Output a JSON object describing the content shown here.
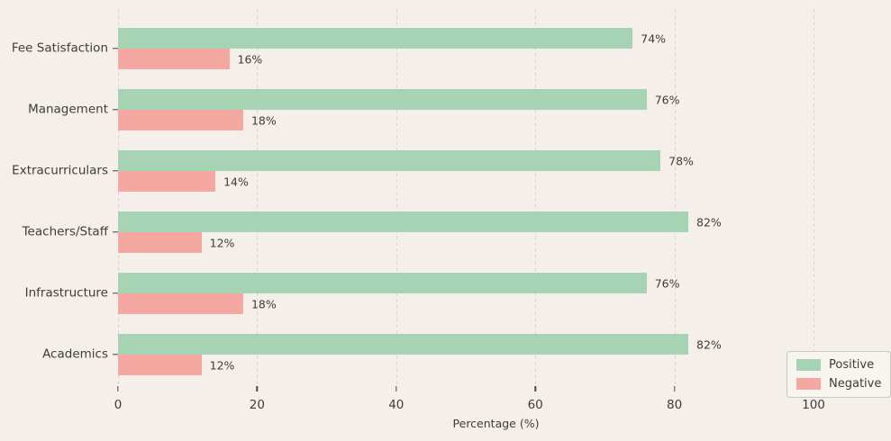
{
  "chart_data": {
    "type": "bar",
    "orientation": "horizontal",
    "categories": [
      "Fee Satisfaction",
      "Management",
      "Extracurriculars",
      "Teachers/Staff",
      "Infrastructure",
      "Academics"
    ],
    "series": [
      {
        "name": "Positive",
        "color": "#a6d3b4",
        "values": [
          74,
          76,
          78,
          82,
          76,
          82
        ]
      },
      {
        "name": "Negative",
        "color": "#f5a7a2",
        "values": [
          16,
          18,
          14,
          12,
          18,
          12
        ]
      }
    ],
    "value_labels": {
      "Positive": [
        "74%",
        "76%",
        "78%",
        "82%",
        "76%",
        "82%"
      ],
      "Negative": [
        "16%",
        "18%",
        "14%",
        "12%",
        "18%",
        "12%"
      ]
    },
    "value_suffix": "%",
    "xlabel": "Percentage (%)",
    "x_ticks": [
      0,
      20,
      40,
      60,
      80,
      100
    ],
    "xlim": [
      0,
      108.7
    ],
    "grid": "vertical-dashed",
    "legend_position": "lower-right"
  },
  "colors": {
    "background": "#f4efea",
    "gridline": "#dcd6cf",
    "text": "#3f3b38",
    "positive": "#a6d3b4",
    "negative": "#f5a7a2",
    "legend_border": "#ccc7c1",
    "legend_background": "#f8f4f0"
  }
}
